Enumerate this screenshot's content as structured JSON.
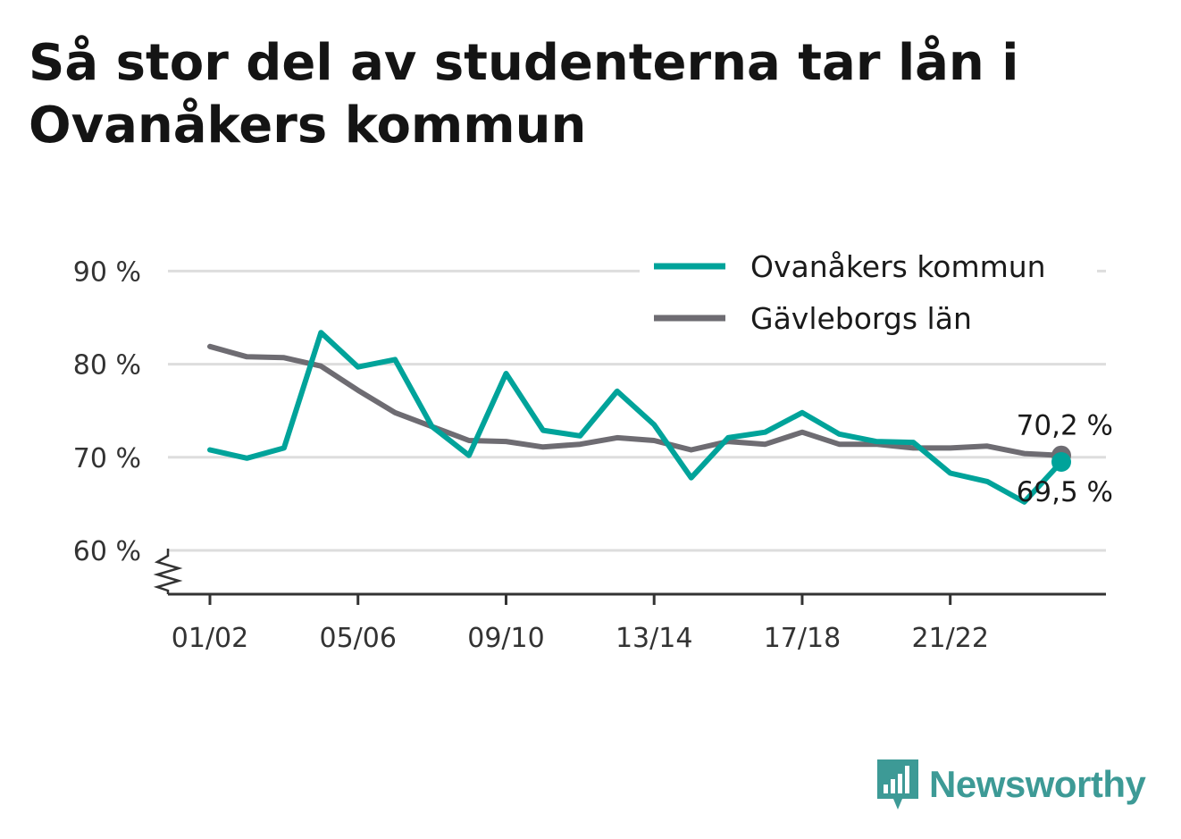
{
  "header": {
    "title": "Så stor del av studenterna tar lån i Ovanåkers kommun"
  },
  "colors": {
    "series_primary": "#00a39a",
    "series_secondary": "#6e6c72",
    "gridline": "#dddddd",
    "axis": "#333333",
    "brand": "#3d9a96"
  },
  "brand": {
    "name": "Newsworthy",
    "icon": "newsworthy-logo-icon"
  },
  "chart_data": {
    "type": "line",
    "title": "Så stor del av studenterna tar lån i Ovanåkers kommun",
    "xlabel": "",
    "ylabel": "",
    "ylim": [
      55,
      92
    ],
    "y_ticks": [
      60,
      70,
      80,
      90
    ],
    "y_tick_labels": [
      "60 %",
      "70 %",
      "80 %",
      "90 %"
    ],
    "y_axis_break": true,
    "grid": true,
    "legend_position": "top-right",
    "x": [
      "01/02",
      "02/03",
      "03/04",
      "04/05",
      "05/06",
      "06/07",
      "07/08",
      "08/09",
      "09/10",
      "10/11",
      "11/12",
      "12/13",
      "13/14",
      "14/15",
      "15/16",
      "16/17",
      "17/18",
      "18/19",
      "19/20",
      "20/21",
      "21/22",
      "22/23",
      "23/24",
      "24/25"
    ],
    "x_tick_labels": [
      "01/02",
      "05/06",
      "09/10",
      "13/14",
      "17/18",
      "21/22"
    ],
    "series": [
      {
        "name": "Ovanåkers kommun",
        "values": [
          70.8,
          69.9,
          71.0,
          83.4,
          79.7,
          80.5,
          73.3,
          70.2,
          79.0,
          72.9,
          72.3,
          77.1,
          73.5,
          67.8,
          72.1,
          72.7,
          74.8,
          72.5,
          71.7,
          71.6,
          68.3,
          67.4,
          65.2,
          69.5
        ],
        "end_label": "69,5 %"
      },
      {
        "name": "Gävleborgs län",
        "values": [
          81.9,
          80.8,
          80.7,
          79.8,
          77.2,
          74.8,
          73.3,
          71.8,
          71.7,
          71.1,
          71.4,
          72.1,
          71.8,
          70.8,
          71.7,
          71.4,
          72.7,
          71.4,
          71.4,
          71.0,
          71.0,
          71.2,
          70.4,
          70.2
        ],
        "end_label": "70,2 %"
      }
    ]
  }
}
